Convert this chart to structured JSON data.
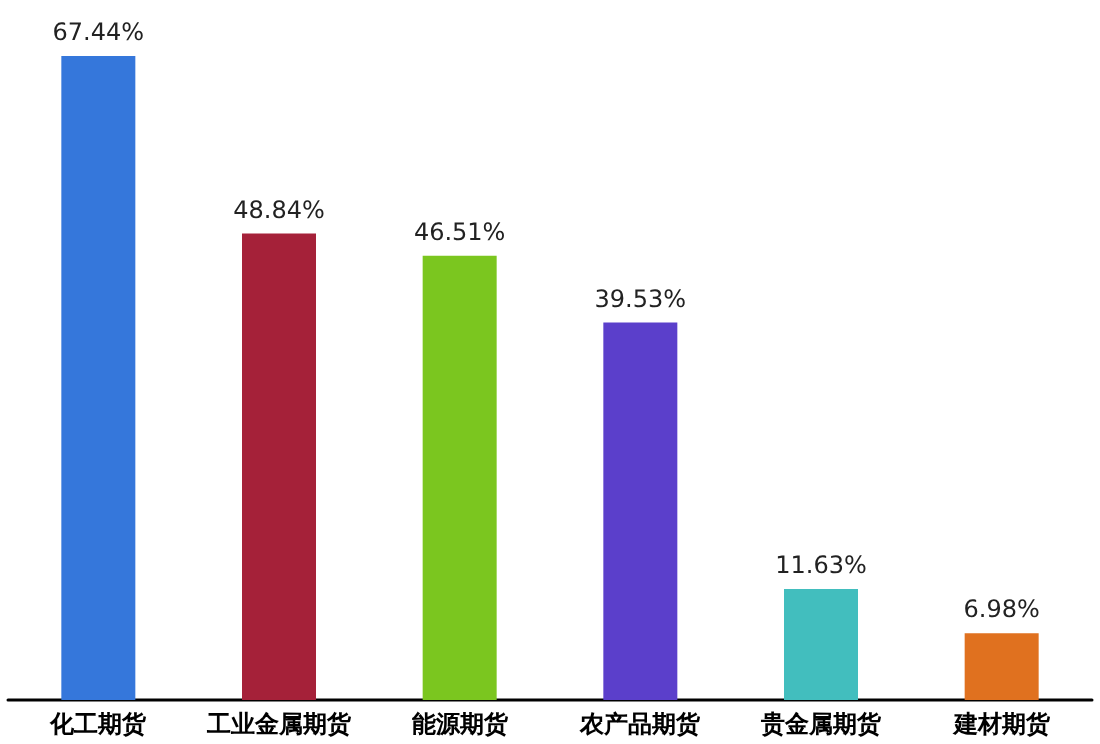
{
  "chart_data": {
    "type": "bar",
    "categories": [
      "化工期货",
      "工业金属期货",
      "能源期货",
      "农产品期货",
      "贵金属期货",
      "建材期货"
    ],
    "values": [
      67.44,
      48.84,
      46.51,
      39.53,
      11.63,
      6.98
    ],
    "colors": [
      "#3577db",
      "#a52139",
      "#7bc61f",
      "#5b3fcb",
      "#42bebe",
      "#e0711f"
    ],
    "value_labels": [
      "67.44%",
      "48.84%",
      "46.51%",
      "39.53%",
      "11.63%",
      "6.98%"
    ]
  }
}
